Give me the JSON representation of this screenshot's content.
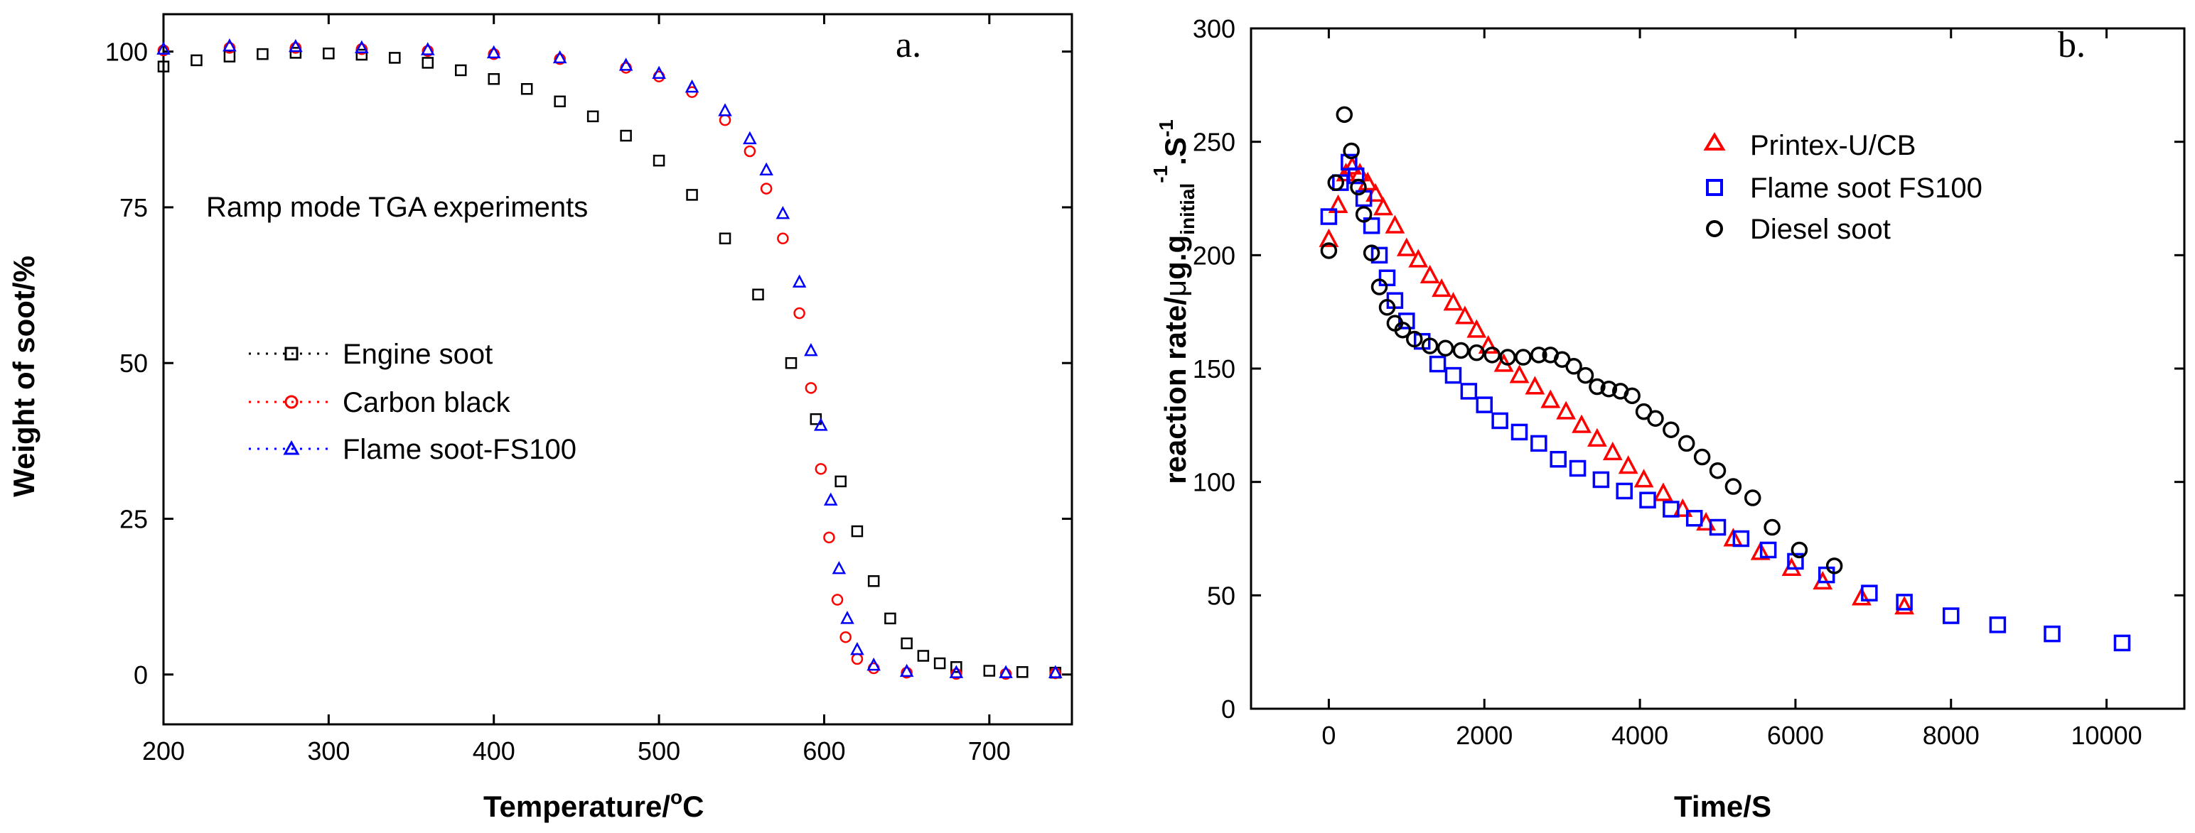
{
  "chart_data": [
    {
      "type": "scatter",
      "panel_label": "a.",
      "title": "",
      "annotation": "Ramp mode TGA experiments",
      "xlabel_main": "Temperature/",
      "xlabel_sup": "o",
      "xlabel_tail": "C",
      "ylabel": "Weight of soot/%",
      "xlim": [
        200,
        750
      ],
      "ylim": [
        -8,
        106
      ],
      "xticks": [
        200,
        300,
        400,
        500,
        600,
        700
      ],
      "yticks": [
        0,
        25,
        50,
        75,
        100
      ],
      "grid": false,
      "legend_position": "center-left",
      "series": [
        {
          "name": "Engine soot",
          "color": "#000000",
          "marker": "square",
          "points": [
            [
              200,
              97.6
            ],
            [
              220,
              98.6
            ],
            [
              240,
              99.2
            ],
            [
              260,
              99.6
            ],
            [
              280,
              99.8
            ],
            [
              300,
              99.7
            ],
            [
              320,
              99.5
            ],
            [
              340,
              99.0
            ],
            [
              360,
              98.2
            ],
            [
              380,
              97.0
            ],
            [
              400,
              95.6
            ],
            [
              420,
              94.0
            ],
            [
              440,
              92.0
            ],
            [
              460,
              89.6
            ],
            [
              480,
              86.5
            ],
            [
              500,
              82.5
            ],
            [
              520,
              77.0
            ],
            [
              540,
              70.0
            ],
            [
              560,
              61.0
            ],
            [
              580,
              50.0
            ],
            [
              595,
              41.0
            ],
            [
              610,
              31.0
            ],
            [
              620,
              23.0
            ],
            [
              630,
              15.0
            ],
            [
              640,
              9.0
            ],
            [
              650,
              5.0
            ],
            [
              660,
              3.0
            ],
            [
              670,
              1.8
            ],
            [
              680,
              1.2
            ],
            [
              700,
              0.6
            ],
            [
              720,
              0.4
            ],
            [
              740,
              0.3
            ]
          ]
        },
        {
          "name": "Carbon black",
          "color": "#ff0000",
          "marker": "circle",
          "points": [
            [
              200,
              100.2
            ],
            [
              240,
              100.6
            ],
            [
              280,
              100.6
            ],
            [
              320,
              100.4
            ],
            [
              360,
              100.1
            ],
            [
              400,
              99.6
            ],
            [
              440,
              98.8
            ],
            [
              480,
              97.4
            ],
            [
              500,
              96.0
            ],
            [
              520,
              93.5
            ],
            [
              540,
              89.0
            ],
            [
              555,
              84.0
            ],
            [
              565,
              78.0
            ],
            [
              575,
              70.0
            ],
            [
              585,
              58.0
            ],
            [
              592,
              46.0
            ],
            [
              598,
              33.0
            ],
            [
              603,
              22.0
            ],
            [
              608,
              12.0
            ],
            [
              613,
              6.0
            ],
            [
              620,
              2.5
            ],
            [
              630,
              1.0
            ],
            [
              650,
              0.3
            ],
            [
              680,
              0.1
            ],
            [
              710,
              0.1
            ],
            [
              740,
              0.2
            ]
          ]
        },
        {
          "name": "Flame soot-FS100",
          "color": "#0000ff",
          "marker": "triangle",
          "points": [
            [
              200,
              100.4
            ],
            [
              240,
              100.9
            ],
            [
              280,
              100.8
            ],
            [
              320,
              100.6
            ],
            [
              360,
              100.3
            ],
            [
              400,
              99.8
            ],
            [
              440,
              99.0
            ],
            [
              480,
              97.8
            ],
            [
              500,
              96.5
            ],
            [
              520,
              94.3
            ],
            [
              540,
              90.5
            ],
            [
              555,
              86.0
            ],
            [
              565,
              81.0
            ],
            [
              575,
              74.0
            ],
            [
              585,
              63.0
            ],
            [
              592,
              52.0
            ],
            [
              598,
              40.0
            ],
            [
              604,
              28.0
            ],
            [
              609,
              17.0
            ],
            [
              614,
              9.0
            ],
            [
              620,
              4.0
            ],
            [
              630,
              1.5
            ],
            [
              650,
              0.5
            ],
            [
              680,
              0.3
            ],
            [
              710,
              0.3
            ],
            [
              740,
              0.3
            ]
          ]
        }
      ]
    },
    {
      "type": "scatter",
      "panel_label": "b.",
      "title": "",
      "xlabel_main": "Time/S",
      "ylabel_main": "reaction rate/",
      "ylabel_mu": "μ",
      "ylabel_mid": "g.g",
      "ylabel_sub": "initial",
      "ylabel_sup": "-1",
      "ylabel_s": ".S",
      "ylabel_sup2": "-1",
      "xlim": [
        -1000,
        11000
      ],
      "ylim": [
        0,
        300
      ],
      "xticks": [
        0,
        2000,
        4000,
        6000,
        8000,
        10000
      ],
      "yticks": [
        0,
        50,
        100,
        150,
        200,
        250,
        300
      ],
      "grid": false,
      "legend_position": "top-right",
      "series": [
        {
          "name": "Printex-U/CB",
          "color": "#ff0000",
          "marker": "triangle",
          "points": [
            [
              0,
              207
            ],
            [
              120,
              222
            ],
            [
              220,
              236
            ],
            [
              300,
              239
            ],
            [
              400,
              236
            ],
            [
              500,
              232
            ],
            [
              600,
              227
            ],
            [
              700,
              221
            ],
            [
              850,
              213
            ],
            [
              1000,
              203
            ],
            [
              1150,
              198
            ],
            [
              1300,
              191
            ],
            [
              1450,
              185
            ],
            [
              1600,
              179
            ],
            [
              1750,
              173
            ],
            [
              1900,
              167
            ],
            [
              2050,
              160
            ],
            [
              2250,
              152
            ],
            [
              2450,
              147
            ],
            [
              2650,
              142
            ],
            [
              2850,
              136
            ],
            [
              3050,
              131
            ],
            [
              3250,
              125
            ],
            [
              3450,
              119
            ],
            [
              3650,
              113
            ],
            [
              3850,
              107
            ],
            [
              4050,
              101
            ],
            [
              4300,
              95
            ],
            [
              4550,
              88
            ],
            [
              4850,
              82
            ],
            [
              5200,
              75
            ],
            [
              5550,
              69
            ],
            [
              5950,
              62
            ],
            [
              6350,
              56
            ],
            [
              6850,
              49
            ],
            [
              7400,
              45
            ]
          ]
        },
        {
          "name": "Flame soot FS100",
          "color": "#0000ff",
          "marker": "square",
          "points": [
            [
              0,
              217
            ],
            [
              150,
              232
            ],
            [
              260,
              241
            ],
            [
              350,
              235
            ],
            [
              450,
              225
            ],
            [
              550,
              213
            ],
            [
              650,
              200
            ],
            [
              750,
              190
            ],
            [
              850,
              180
            ],
            [
              1000,
              171
            ],
            [
              1200,
              162
            ],
            [
              1400,
              152
            ],
            [
              1600,
              147
            ],
            [
              1800,
              140
            ],
            [
              2000,
              134
            ],
            [
              2200,
              127
            ],
            [
              2450,
              122
            ],
            [
              2700,
              117
            ],
            [
              2950,
              110
            ],
            [
              3200,
              106
            ],
            [
              3500,
              101
            ],
            [
              3800,
              96
            ],
            [
              4100,
              92
            ],
            [
              4400,
              88
            ],
            [
              4700,
              84
            ],
            [
              5000,
              80
            ],
            [
              5300,
              75
            ],
            [
              5650,
              70
            ],
            [
              6000,
              65
            ],
            [
              6400,
              59
            ],
            [
              6950,
              51
            ],
            [
              7400,
              47
            ],
            [
              8000,
              41
            ],
            [
              8600,
              37
            ],
            [
              9300,
              33
            ],
            [
              10200,
              29
            ]
          ]
        },
        {
          "name": "Diesel soot",
          "color": "#000000",
          "marker": "circle",
          "points": [
            [
              0,
              202
            ],
            [
              90,
              232
            ],
            [
              200,
              262
            ],
            [
              290,
              246
            ],
            [
              380,
              230
            ],
            [
              450,
              218
            ],
            [
              550,
              201
            ],
            [
              650,
              186
            ],
            [
              750,
              177
            ],
            [
              850,
              170
            ],
            [
              950,
              167
            ],
            [
              1100,
              163
            ],
            [
              1300,
              160
            ],
            [
              1500,
              159
            ],
            [
              1700,
              158
            ],
            [
              1900,
              157
            ],
            [
              2100,
              156
            ],
            [
              2300,
              155
            ],
            [
              2500,
              155
            ],
            [
              2700,
              156
            ],
            [
              2850,
              156
            ],
            [
              3000,
              154
            ],
            [
              3150,
              151
            ],
            [
              3300,
              147
            ],
            [
              3450,
              142
            ],
            [
              3600,
              141
            ],
            [
              3750,
              140
            ],
            [
              3900,
              138
            ],
            [
              4050,
              131
            ],
            [
              4200,
              128
            ],
            [
              4400,
              123
            ],
            [
              4600,
              117
            ],
            [
              4800,
              111
            ],
            [
              5000,
              105
            ],
            [
              5200,
              98
            ],
            [
              5450,
              93
            ],
            [
              5700,
              80
            ],
            [
              6050,
              70
            ],
            [
              6500,
              63
            ]
          ]
        }
      ]
    }
  ]
}
